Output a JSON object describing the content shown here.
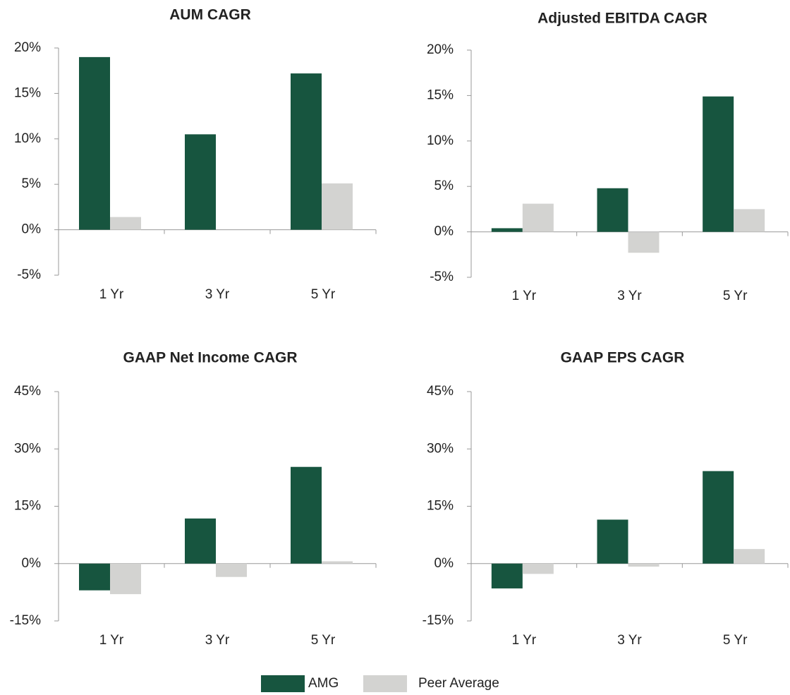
{
  "legend": [
    {
      "name": "AMG",
      "color": "#17553f"
    },
    {
      "name": "Peer Average",
      "color": "#d3d3d1"
    }
  ],
  "chart_data": [
    {
      "type": "bar",
      "title": "AUM CAGR",
      "categories": [
        "1 Yr",
        "3 Yr",
        "5 Yr"
      ],
      "series": [
        {
          "values": [
            19,
            10.5,
            17.2
          ]
        },
        {
          "values": [
            1.4,
            null,
            5.1
          ]
        }
      ],
      "ylim": [
        -5,
        20
      ],
      "yticks": [
        {
          "value": -5,
          "label": "-5%"
        },
        {
          "value": 0,
          "label": "0%"
        },
        {
          "value": 5,
          "label": "5%"
        },
        {
          "value": 10,
          "label": "10%"
        },
        {
          "value": 15,
          "label": "15%"
        },
        {
          "value": 20,
          "label": "20%"
        }
      ]
    },
    {
      "type": "bar",
      "title": "Adjusted EBITDA CAGR",
      "categories": [
        "1 Yr",
        "3 Yr",
        "5 Yr"
      ],
      "series": [
        {
          "values": [
            0.4,
            4.8,
            14.9
          ]
        },
        {
          "values": [
            3.1,
            -2.3,
            2.5
          ]
        }
      ],
      "ylim": [
        -5,
        20
      ],
      "yticks": [
        {
          "value": -5,
          "label": "-5%"
        },
        {
          "value": 0,
          "label": "0%"
        },
        {
          "value": 5,
          "label": "5%"
        },
        {
          "value": 10,
          "label": "10%"
        },
        {
          "value": 15,
          "label": "15%"
        },
        {
          "value": 20,
          "label": "20%"
        }
      ]
    },
    {
      "type": "bar",
      "title": "GAAP Net Income CAGR",
      "categories": [
        "1 Yr",
        "3 Yr",
        "5 Yr"
      ],
      "series": [
        {
          "values": [
            -7,
            11.8,
            25.3
          ]
        },
        {
          "values": [
            -8,
            -3.5,
            0.6
          ]
        }
      ],
      "ylim": [
        -15,
        45
      ],
      "yticks": [
        {
          "value": -15,
          "label": "-15%"
        },
        {
          "value": 0,
          "label": "0%"
        },
        {
          "value": 15,
          "label": "15%"
        },
        {
          "value": 30,
          "label": "30%"
        },
        {
          "value": 45,
          "label": "45%"
        }
      ]
    },
    {
      "type": "bar",
      "title": "GAAP EPS CAGR",
      "categories": [
        "1 Yr",
        "3 Yr",
        "5 Yr"
      ],
      "series": [
        {
          "values": [
            -6.5,
            11.5,
            24.2
          ]
        },
        {
          "values": [
            -2.7,
            -0.8,
            3.8
          ]
        }
      ],
      "ylim": [
        -15,
        45
      ],
      "yticks": [
        {
          "value": -15,
          "label": "-15%"
        },
        {
          "value": 0,
          "label": "0%"
        },
        {
          "value": 15,
          "label": "15%"
        },
        {
          "value": 30,
          "label": "30%"
        },
        {
          "value": 45,
          "label": "45%"
        }
      ]
    }
  ]
}
